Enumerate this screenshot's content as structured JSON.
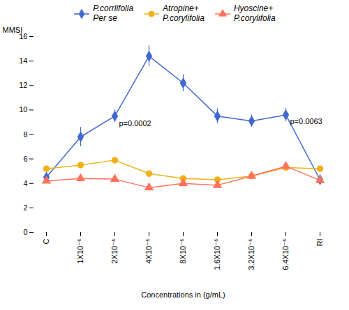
{
  "chart_data": {
    "type": "line",
    "categories": [
      "C",
      "1X10⁻⁶",
      "2X10⁻⁶",
      "4X10⁻⁶",
      "8X10⁻⁶",
      "1.6X10⁻⁶",
      "3.2X10⁻⁶",
      "6.4X10⁻⁶",
      "RI"
    ],
    "series": [
      {
        "name": "P.corrlifolia\nPer se",
        "values": [
          4.5,
          7.8,
          9.5,
          14.4,
          12.2,
          9.5,
          9.1,
          9.6,
          4.3
        ],
        "errors": [
          0.2,
          0.8,
          0.5,
          0.85,
          0.7,
          0.6,
          0.5,
          0.55,
          0.2
        ],
        "marker": "diamond"
      },
      {
        "name": "Atropine+\nP.corylifolia",
        "values": [
          5.2,
          5.5,
          5.9,
          4.8,
          4.4,
          4.3,
          4.6,
          5.3,
          5.2
        ],
        "errors": [
          0.12,
          0.18,
          0.22,
          0.18,
          0.12,
          0.12,
          0.18,
          0.28,
          0.18
        ],
        "marker": "circle"
      },
      {
        "name": "Hyoscine+\nP.corylifolia",
        "values": [
          4.2,
          4.4,
          4.35,
          3.65,
          4.0,
          3.85,
          4.6,
          5.4,
          4.25
        ],
        "errors": [
          0.1,
          0.12,
          0.18,
          0.18,
          0.12,
          0.1,
          0.18,
          0.28,
          0.18
        ],
        "marker": "triangle"
      }
    ],
    "xlabel": "Concentrations in (g/mL)",
    "ylabel": "MMSI",
    "ylim": [
      0,
      16
    ],
    "yticks": [
      0,
      2,
      4,
      6,
      8,
      10,
      12,
      14,
      16
    ],
    "annotations": [
      {
        "text": "p=0.0002",
        "x": "2X10⁻⁶",
        "y": 8.9
      },
      {
        "text": "p=0.0063",
        "x": "6.4X10⁻⁶",
        "y": 9.05
      }
    ],
    "grid": false,
    "legend": "top"
  }
}
